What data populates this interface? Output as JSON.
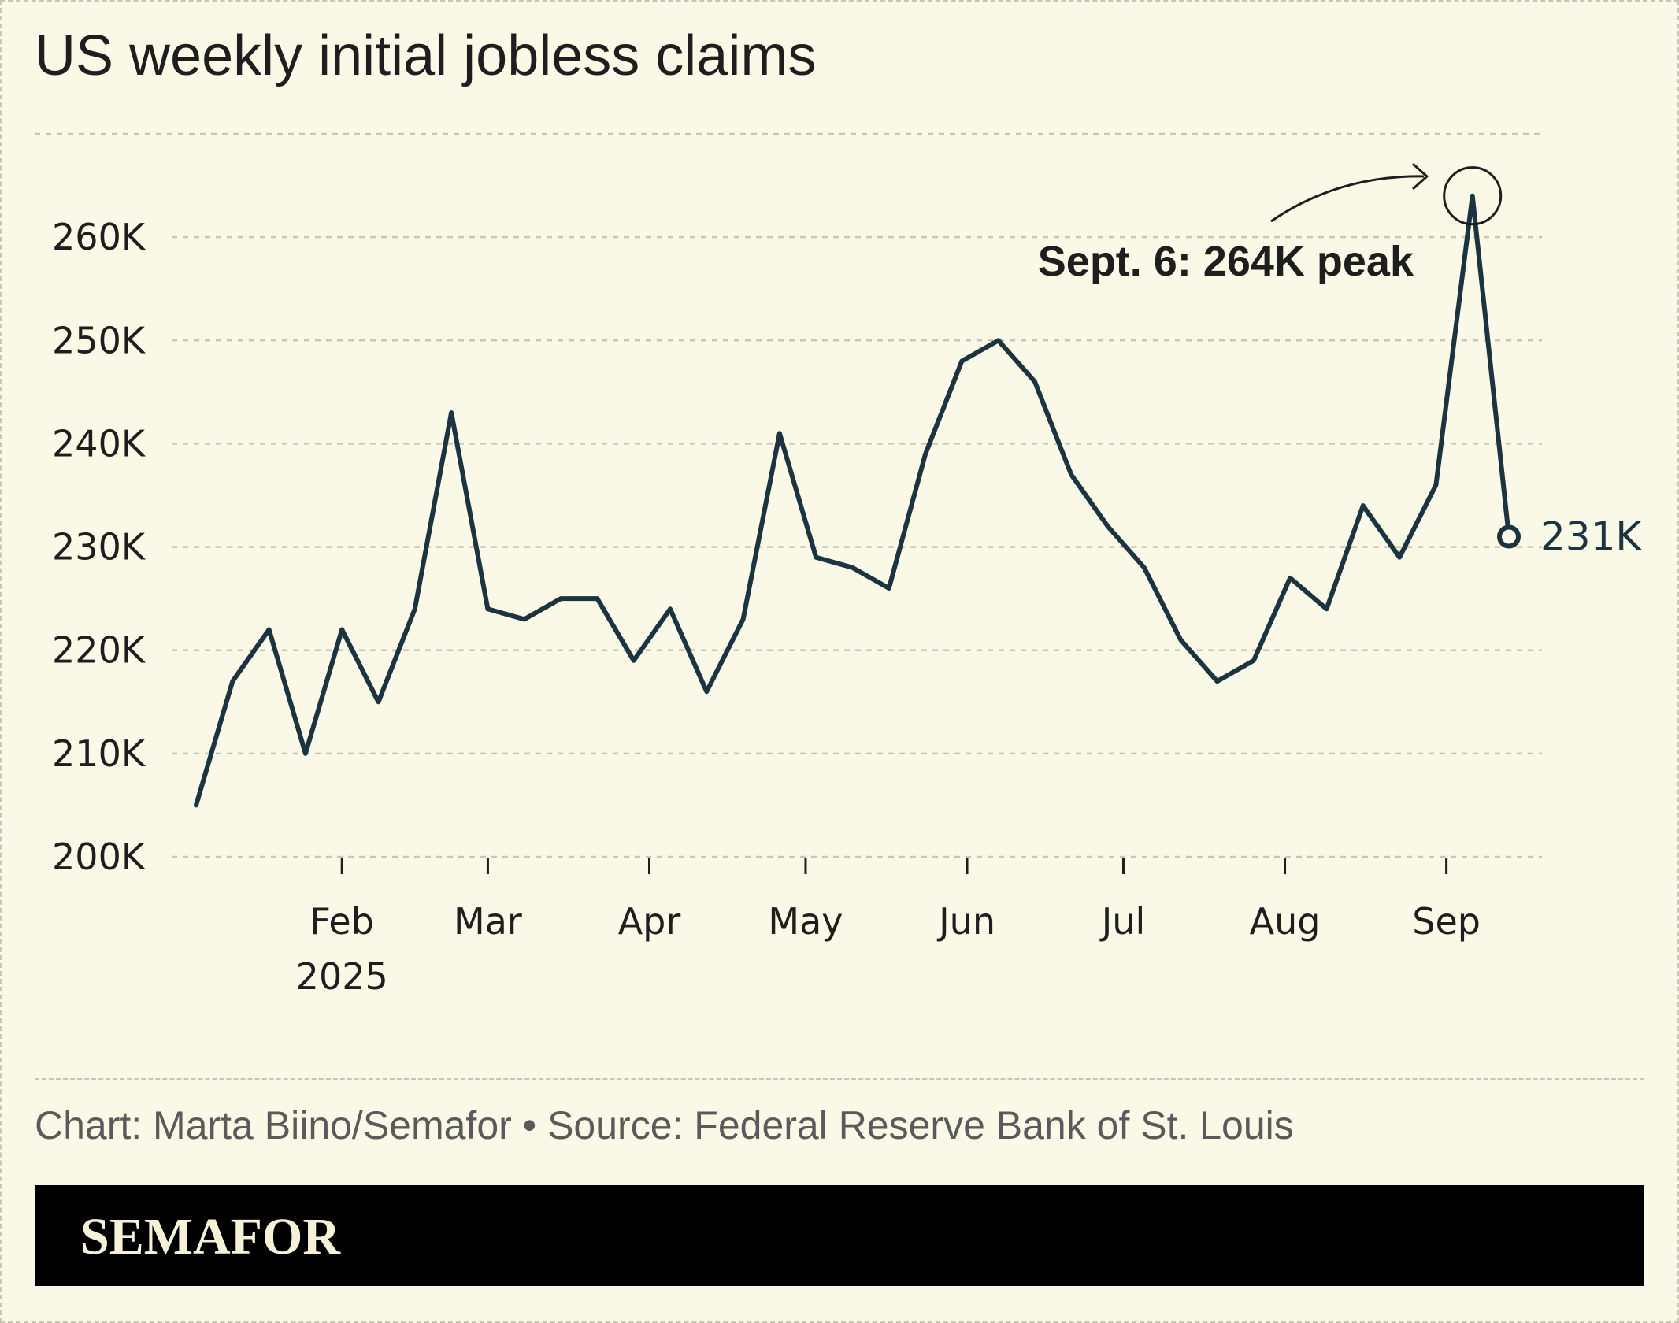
{
  "title": "US weekly initial jobless claims",
  "credits": "Chart: Marta Biino/Semafor • Source: Federal Reserve Bank of St. Louis",
  "brand": "SEMAFOR",
  "colors": {
    "background": "#faf8e6",
    "line": "#1b3440",
    "grid": "#c9c6b4",
    "brand_bar": "#000000"
  },
  "chart_data": {
    "type": "line",
    "title": "US weekly initial jobless claims",
    "xlabel": "",
    "ylabel": "",
    "ylim": [
      200000,
      270000
    ],
    "y_ticks": [
      200000,
      210000,
      220000,
      230000,
      240000,
      250000,
      260000
    ],
    "y_tick_labels": [
      "200K",
      "210K",
      "220K",
      "230K",
      "240K",
      "250K",
      "260K"
    ],
    "grid": true,
    "x_ticks": [
      {
        "date": "2025-02-01",
        "label": "Feb",
        "sublabel": "2025"
      },
      {
        "date": "2025-03-01",
        "label": "Mar"
      },
      {
        "date": "2025-04-01",
        "label": "Apr"
      },
      {
        "date": "2025-05-01",
        "label": "May"
      },
      {
        "date": "2025-06-01",
        "label": "Jun"
      },
      {
        "date": "2025-07-01",
        "label": "Jul"
      },
      {
        "date": "2025-08-01",
        "label": "Aug"
      },
      {
        "date": "2025-09-01",
        "label": "Sep"
      }
    ],
    "series": [
      {
        "x": [
          "2025-01-04",
          "2025-01-11",
          "2025-01-18",
          "2025-01-25",
          "2025-02-01",
          "2025-02-08",
          "2025-02-15",
          "2025-02-22",
          "2025-03-01",
          "2025-03-08",
          "2025-03-15",
          "2025-03-22",
          "2025-03-29",
          "2025-04-05",
          "2025-04-12",
          "2025-04-19",
          "2025-04-26",
          "2025-05-03",
          "2025-05-10",
          "2025-05-17",
          "2025-05-24",
          "2025-05-31",
          "2025-06-07",
          "2025-06-14",
          "2025-06-21",
          "2025-06-28",
          "2025-07-05",
          "2025-07-12",
          "2025-07-19",
          "2025-07-26",
          "2025-08-02",
          "2025-08-09",
          "2025-08-16",
          "2025-08-23",
          "2025-08-30",
          "2025-09-06",
          "2025-09-13"
        ],
        "y": [
          205000,
          217000,
          222000,
          210000,
          222000,
          215000,
          224000,
          243000,
          224000,
          223000,
          225000,
          225000,
          219000,
          224000,
          216000,
          223000,
          241000,
          229000,
          228000,
          226000,
          239000,
          248000,
          250000,
          246000,
          237000,
          232000,
          228000,
          221000,
          217000,
          219000,
          227000,
          224000,
          234000,
          229000,
          236000,
          264000,
          231000
        ]
      }
    ],
    "annotations": [
      {
        "x": "2025-09-06",
        "y": 264000,
        "text": "Sept. 6: 264K peak"
      },
      {
        "x": "2025-09-13",
        "y": 231000,
        "text": "231K"
      }
    ]
  }
}
